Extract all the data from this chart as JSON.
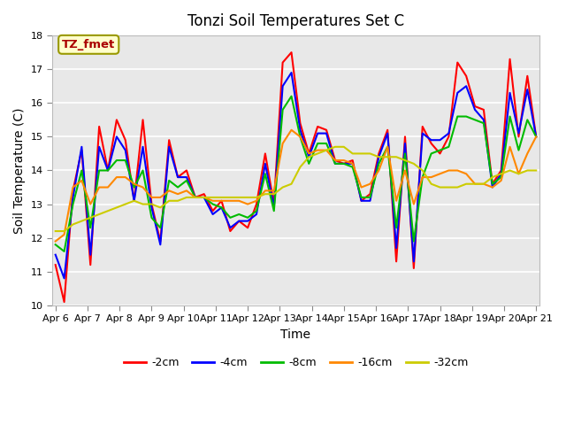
{
  "title": "Tonzi Soil Temperatures Set C",
  "xlabel": "Time",
  "ylabel": "Soil Temperature (C)",
  "ylim": [
    10.0,
    18.0
  ],
  "yticks": [
    10.0,
    11.0,
    12.0,
    13.0,
    14.0,
    15.0,
    16.0,
    17.0,
    18.0
  ],
  "x_labels": [
    "Apr 6",
    "Apr 7",
    "Apr 8",
    "Apr 9",
    "Apr 10",
    "Apr 11",
    "Apr 12",
    "Apr 13",
    "Apr 14",
    "Apr 15",
    "Apr 16",
    "Apr 17",
    "Apr 18",
    "Apr 19",
    "Apr 20",
    "Apr 21"
  ],
  "annotation_label": "TZ_fmet",
  "annotation_color": "#aa0000",
  "annotation_bg": "#ffffcc",
  "annotation_border": "#999900",
  "series": {
    "-2cm": {
      "color": "#ff0000",
      "linewidth": 1.5,
      "values": [
        11.2,
        10.1,
        13.4,
        14.6,
        11.2,
        15.3,
        14.0,
        15.5,
        14.9,
        13.1,
        15.5,
        13.0,
        11.9,
        14.9,
        13.8,
        14.0,
        13.2,
        13.3,
        12.8,
        13.1,
        12.2,
        12.5,
        12.3,
        13.0,
        14.5,
        13.0,
        17.2,
        17.5,
        15.4,
        14.5,
        15.3,
        15.2,
        14.3,
        14.2,
        14.3,
        13.1,
        13.3,
        14.5,
        15.2,
        11.3,
        15.0,
        11.1,
        15.3,
        14.8,
        14.5,
        15.0,
        17.2,
        16.8,
        15.9,
        15.8,
        13.6,
        14.0,
        17.3,
        15.0,
        16.8,
        15.0
      ]
    },
    "-4cm": {
      "color": "#0000ff",
      "linewidth": 1.5,
      "values": [
        11.5,
        10.8,
        13.2,
        14.7,
        11.5,
        14.7,
        14.0,
        15.0,
        14.6,
        13.1,
        14.7,
        12.9,
        11.8,
        14.7,
        13.8,
        13.8,
        13.2,
        13.2,
        12.7,
        12.9,
        12.3,
        12.5,
        12.5,
        12.7,
        14.2,
        12.9,
        16.5,
        16.9,
        15.2,
        14.4,
        15.1,
        15.1,
        14.2,
        14.2,
        14.2,
        13.1,
        13.1,
        14.4,
        15.1,
        11.7,
        14.8,
        11.3,
        15.1,
        14.9,
        14.9,
        15.1,
        16.3,
        16.5,
        15.8,
        15.5,
        13.5,
        13.9,
        16.3,
        15.1,
        16.4,
        15.0
      ]
    },
    "-8cm": {
      "color": "#00bb00",
      "linewidth": 1.5,
      "values": [
        11.8,
        11.6,
        13.0,
        14.0,
        12.3,
        14.0,
        14.0,
        14.3,
        14.3,
        13.5,
        14.0,
        12.6,
        12.3,
        13.7,
        13.5,
        13.7,
        13.2,
        13.2,
        13.0,
        12.9,
        12.6,
        12.7,
        12.6,
        12.8,
        13.9,
        12.8,
        15.8,
        16.2,
        15.0,
        14.2,
        14.8,
        14.8,
        14.2,
        14.2,
        14.1,
        13.2,
        13.2,
        14.2,
        14.7,
        12.3,
        14.5,
        11.9,
        13.8,
        14.5,
        14.6,
        14.7,
        15.6,
        15.6,
        15.5,
        15.4,
        13.6,
        13.8,
        15.6,
        14.6,
        15.5,
        15.0
      ]
    },
    "-16cm": {
      "color": "#ff8800",
      "linewidth": 1.5,
      "values": [
        11.9,
        12.1,
        13.5,
        13.7,
        13.0,
        13.5,
        13.5,
        13.8,
        13.8,
        13.6,
        13.5,
        13.2,
        13.2,
        13.4,
        13.3,
        13.4,
        13.2,
        13.2,
        13.1,
        13.1,
        13.1,
        13.1,
        13.0,
        13.1,
        13.4,
        13.4,
        14.8,
        15.2,
        15.0,
        14.5,
        14.6,
        14.6,
        14.3,
        14.3,
        14.2,
        13.5,
        13.6,
        14.0,
        14.7,
        13.1,
        14.0,
        13.0,
        13.8,
        13.8,
        13.9,
        14.0,
        14.0,
        13.9,
        13.6,
        13.6,
        13.5,
        13.7,
        14.7,
        13.9,
        14.5,
        15.0
      ]
    },
    "-32cm": {
      "color": "#cccc00",
      "linewidth": 1.5,
      "values": [
        12.2,
        12.2,
        12.4,
        12.5,
        12.6,
        12.7,
        12.8,
        12.9,
        13.0,
        13.1,
        13.0,
        13.0,
        12.9,
        13.1,
        13.1,
        13.2,
        13.2,
        13.2,
        13.2,
        13.2,
        13.2,
        13.2,
        13.2,
        13.2,
        13.3,
        13.3,
        13.5,
        13.6,
        14.1,
        14.4,
        14.5,
        14.6,
        14.7,
        14.7,
        14.5,
        14.5,
        14.5,
        14.4,
        14.4,
        14.4,
        14.3,
        14.2,
        14.0,
        13.6,
        13.5,
        13.5,
        13.5,
        13.6,
        13.6,
        13.6,
        13.8,
        13.9,
        14.0,
        13.9,
        14.0,
        14.0
      ]
    }
  },
  "bg_color": "#e8e8e8",
  "plot_bg_color": "#e8e8e8",
  "grid_color": "#ffffff",
  "grid_linewidth": 1.2,
  "num_points": 56,
  "fig_bg": "#ffffff"
}
